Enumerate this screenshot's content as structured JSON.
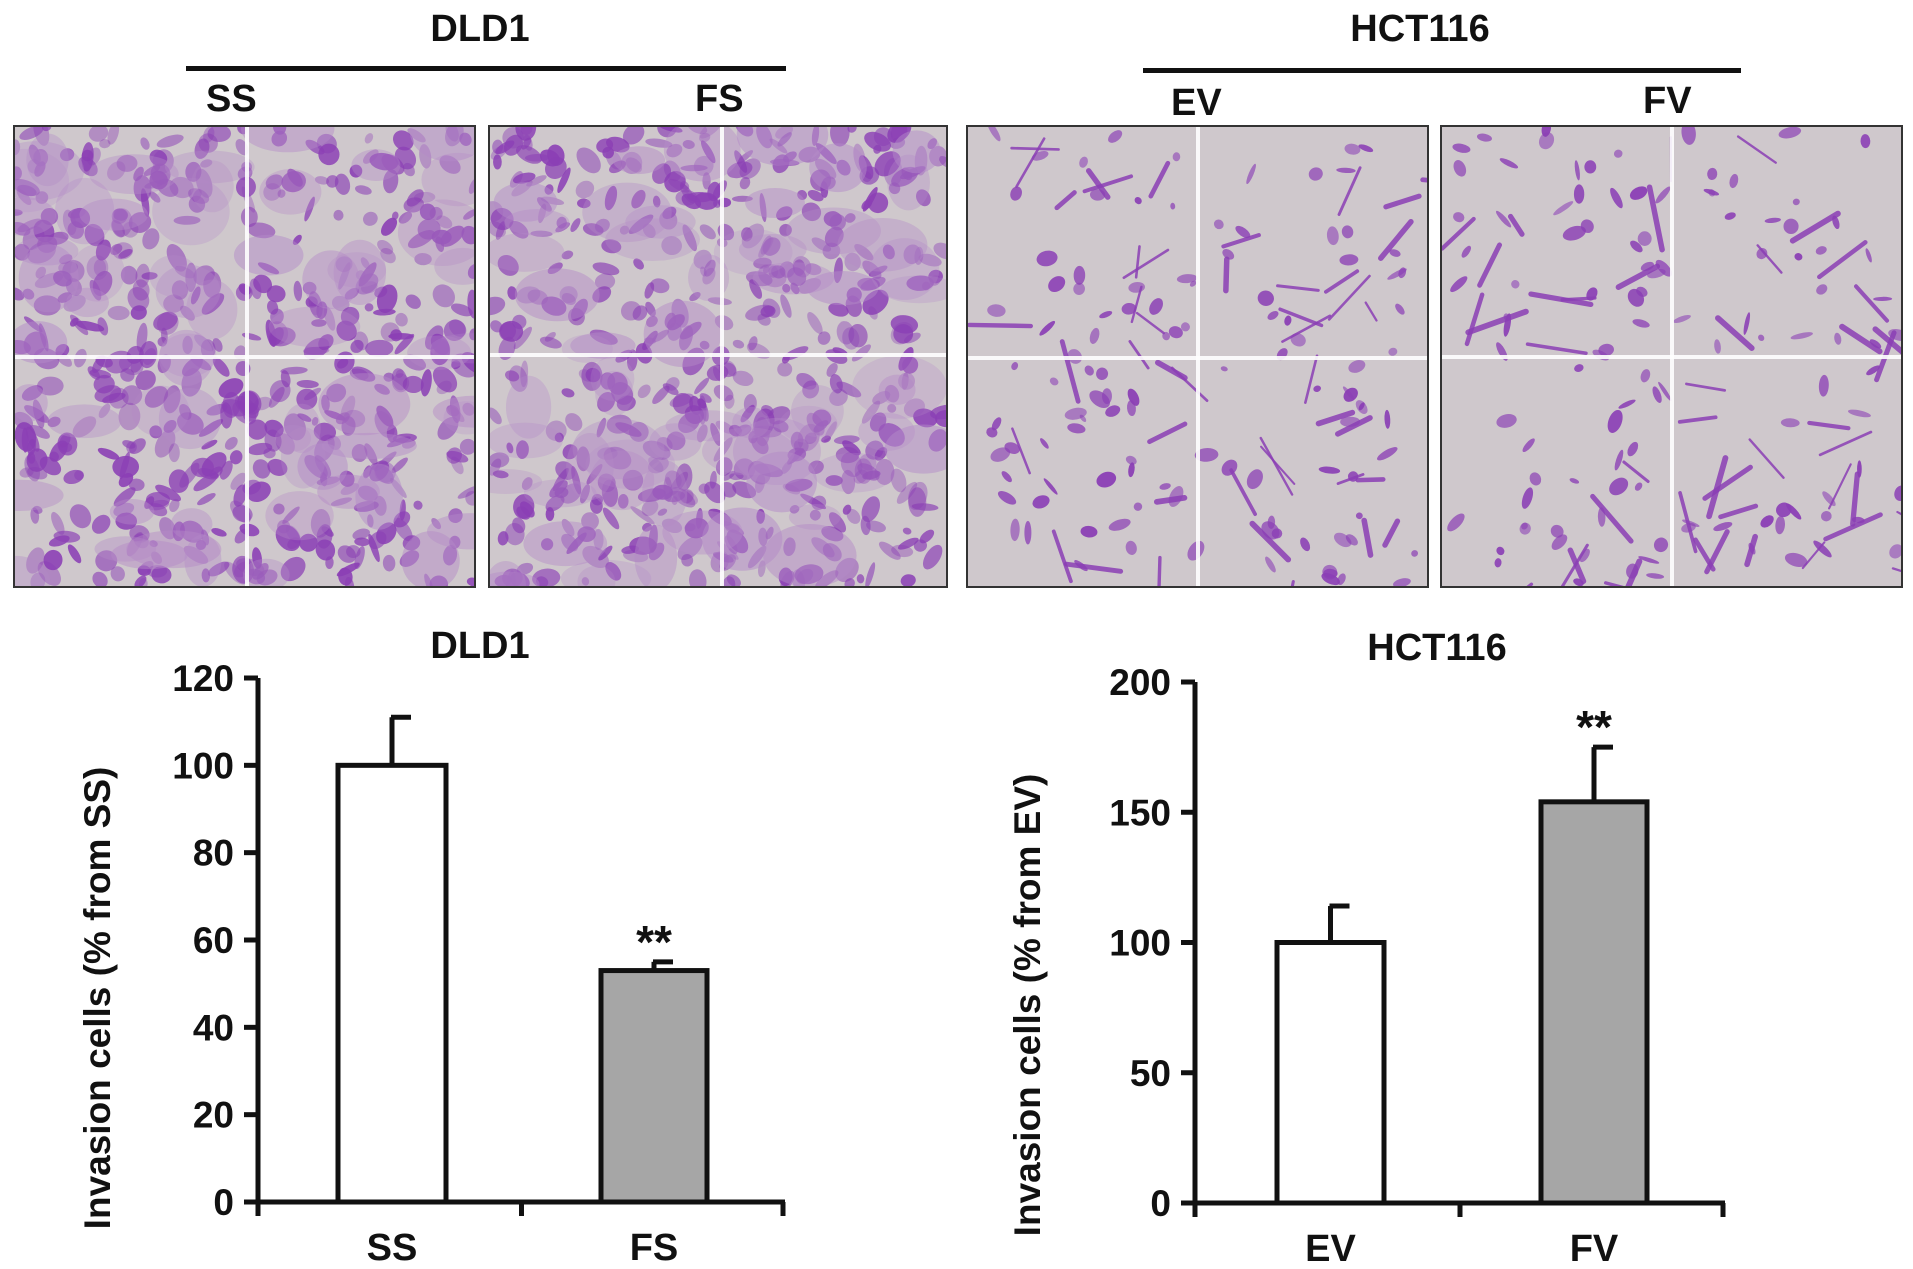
{
  "figure": {
    "groups": [
      {
        "title": "DLD1",
        "conditions": [
          "SS",
          "FS"
        ]
      },
      {
        "title": "HCT116",
        "conditions": [
          "EV",
          "FV"
        ]
      }
    ],
    "stain_color": "#8b3fb5",
    "background_color": "#cfc8cc"
  },
  "chart_data": [
    {
      "type": "bar",
      "title": "DLD1",
      "categories": [
        "SS",
        "FS"
      ],
      "values": [
        100,
        53
      ],
      "errors": [
        11,
        2
      ],
      "significance": [
        "",
        "**"
      ],
      "bar_colors": [
        "#ffffff",
        "#a6a6a6"
      ],
      "ylabel": "Invasion cells (% from SS)",
      "xlabel": "",
      "ylim": [
        0,
        120
      ],
      "yticks": [
        0,
        20,
        40,
        60,
        80,
        100,
        120
      ],
      "grid": false
    },
    {
      "type": "bar",
      "title": "HCT116",
      "categories": [
        "EV",
        "FV"
      ],
      "values": [
        100,
        154
      ],
      "errors": [
        14,
        21
      ],
      "significance": [
        "",
        "**"
      ],
      "bar_colors": [
        "#ffffff",
        "#a6a6a6"
      ],
      "ylabel": "Invasion cells (% from EV)",
      "xlabel": "",
      "ylim": [
        0,
        200
      ],
      "yticks": [
        0,
        50,
        100,
        150,
        200
      ],
      "grid": false
    }
  ]
}
